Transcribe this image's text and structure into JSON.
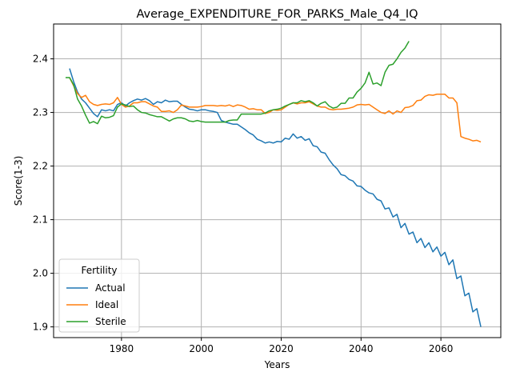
{
  "chart_data": {
    "type": "line",
    "title": "Average_EXPENDITURE_FOR_PARKS_Male_Q4_IQ",
    "xlabel": "Years",
    "ylabel": "Score(1-3)",
    "xlim": [
      1963,
      2075
    ],
    "ylim": [
      1.88,
      2.465
    ],
    "xticks": [
      1980,
      2000,
      2020,
      2040,
      2060
    ],
    "yticks": [
      1.9,
      2.0,
      2.1,
      2.2,
      2.3,
      2.4
    ],
    "ytick_labels": [
      "1.9",
      "2.0",
      "2.1",
      "2.2",
      "2.3",
      "2.4"
    ],
    "grid": true,
    "legend": {
      "title": "Fertility",
      "position": "lower-left"
    },
    "series": [
      {
        "name": "Actual",
        "color": "#1f77b4",
        "x": [
          1967,
          1968,
          1969,
          1970,
          1971,
          1972,
          1973,
          1974,
          1975,
          1976,
          1977,
          1978,
          1979,
          1980,
          1981,
          1982,
          1983,
          1984,
          1985,
          1986,
          1987,
          1988,
          1989,
          1990,
          1991,
          1992,
          1993,
          1994,
          1995,
          1996,
          1997,
          1998,
          1999,
          2000,
          2001,
          2002,
          2003,
          2004,
          2005,
          2006,
          2007,
          2008,
          2009,
          2010,
          2011,
          2012,
          2013,
          2014,
          2015,
          2016,
          2017,
          2018,
          2019,
          2020,
          2021,
          2022,
          2023,
          2024,
          2025,
          2026,
          2027,
          2028,
          2029,
          2030,
          2031,
          2032,
          2033,
          2034,
          2035,
          2036,
          2037,
          2038,
          2039,
          2040,
          2041,
          2042,
          2043,
          2044,
          2045,
          2046,
          2047,
          2048,
          2049,
          2050,
          2051,
          2052,
          2053,
          2054,
          2055,
          2056,
          2057,
          2058,
          2059,
          2060,
          2061,
          2062,
          2063,
          2064,
          2065,
          2066,
          2067,
          2068,
          2069,
          2070
        ],
        "values": [
          2.382,
          2.358,
          2.338,
          2.325,
          2.318,
          2.308,
          2.298,
          2.292,
          2.305,
          2.303,
          2.305,
          2.303,
          2.315,
          2.318,
          2.312,
          2.318,
          2.322,
          2.325,
          2.323,
          2.326,
          2.322,
          2.315,
          2.32,
          2.318,
          2.323,
          2.32,
          2.321,
          2.321,
          2.315,
          2.31,
          2.306,
          2.305,
          2.303,
          2.305,
          2.305,
          2.303,
          2.302,
          2.3,
          2.285,
          2.282,
          2.28,
          2.278,
          2.278,
          2.273,
          2.268,
          2.262,
          2.258,
          2.25,
          2.247,
          2.243,
          2.245,
          2.243,
          2.246,
          2.245,
          2.252,
          2.25,
          2.26,
          2.252,
          2.255,
          2.248,
          2.251,
          2.238,
          2.236,
          2.226,
          2.224,
          2.212,
          2.202,
          2.195,
          2.184,
          2.182,
          2.175,
          2.172,
          2.163,
          2.162,
          2.155,
          2.15,
          2.148,
          2.138,
          2.135,
          2.12,
          2.122,
          2.105,
          2.11,
          2.085,
          2.093,
          2.073,
          2.077,
          2.057,
          2.065,
          2.048,
          2.057,
          2.04,
          2.049,
          2.032,
          2.039,
          2.016,
          2.025,
          1.99,
          1.995,
          1.958,
          1.963,
          1.928,
          1.934,
          1.9
        ]
      },
      {
        "name": "Ideal",
        "color": "#ff7f0e",
        "x": [
          1967,
          1968,
          1969,
          1970,
          1971,
          1972,
          1973,
          1974,
          1975,
          1976,
          1977,
          1978,
          1979,
          1980,
          1981,
          1982,
          1983,
          1984,
          1985,
          1986,
          1987,
          1988,
          1989,
          1990,
          1991,
          1992,
          1993,
          1994,
          1995,
          1996,
          1997,
          1998,
          1999,
          2000,
          2001,
          2002,
          2003,
          2004,
          2005,
          2006,
          2007,
          2008,
          2009,
          2010,
          2011,
          2012,
          2013,
          2014,
          2015,
          2016,
          2017,
          2018,
          2019,
          2020,
          2021,
          2022,
          2023,
          2024,
          2025,
          2026,
          2027,
          2028,
          2029,
          2030,
          2031,
          2032,
          2033,
          2034,
          2035,
          2036,
          2037,
          2038,
          2039,
          2040,
          2041,
          2042,
          2043,
          2044,
          2045,
          2046,
          2047,
          2048,
          2049,
          2050,
          2051,
          2052,
          2053,
          2054,
          2055,
          2056,
          2057,
          2058,
          2059,
          2060,
          2061,
          2062,
          2063,
          2064,
          2065,
          2066,
          2067,
          2068,
          2069,
          2070
        ],
        "values": [
          2.365,
          2.35,
          2.335,
          2.328,
          2.332,
          2.32,
          2.315,
          2.313,
          2.315,
          2.316,
          2.315,
          2.318,
          2.328,
          2.315,
          2.31,
          2.312,
          2.318,
          2.318,
          2.32,
          2.32,
          2.316,
          2.312,
          2.31,
          2.302,
          2.302,
          2.303,
          2.3,
          2.305,
          2.314,
          2.312,
          2.31,
          2.31,
          2.31,
          2.311,
          2.313,
          2.313,
          2.313,
          2.312,
          2.313,
          2.312,
          2.314,
          2.311,
          2.314,
          2.313,
          2.31,
          2.306,
          2.307,
          2.305,
          2.305,
          2.298,
          2.3,
          2.305,
          2.304,
          2.305,
          2.31,
          2.315,
          2.318,
          2.316,
          2.318,
          2.318,
          2.32,
          2.316,
          2.312,
          2.31,
          2.31,
          2.306,
          2.305,
          2.306,
          2.306,
          2.307,
          2.308,
          2.31,
          2.314,
          2.315,
          2.314,
          2.315,
          2.31,
          2.305,
          2.3,
          2.298,
          2.303,
          2.297,
          2.303,
          2.3,
          2.309,
          2.31,
          2.313,
          2.322,
          2.323,
          2.33,
          2.333,
          2.332,
          2.334,
          2.334,
          2.334,
          2.327,
          2.327,
          2.318,
          2.255,
          2.252,
          2.25,
          2.247,
          2.248,
          2.245
        ]
      },
      {
        "name": "Sterile",
        "color": "#2ca02c",
        "x": [
          1966,
          1967,
          1968,
          1969,
          1970,
          1971,
          1972,
          1973,
          1974,
          1975,
          1976,
          1977,
          1978,
          1979,
          1980,
          1981,
          1982,
          1983,
          1984,
          1985,
          1986,
          1987,
          1988,
          1989,
          1990,
          1991,
          1992,
          1993,
          1994,
          1995,
          1996,
          1997,
          1998,
          1999,
          2000,
          2001,
          2002,
          2003,
          2004,
          2005,
          2006,
          2007,
          2008,
          2009,
          2010,
          2011,
          2012,
          2013,
          2014,
          2015,
          2016,
          2017,
          2018,
          2019,
          2020,
          2021,
          2022,
          2023,
          2024,
          2025,
          2026,
          2027,
          2028,
          2029,
          2030,
          2031,
          2032,
          2033,
          2034,
          2035,
          2036,
          2037,
          2038,
          2039,
          2040,
          2041,
          2042,
          2043,
          2044,
          2045,
          2046,
          2047,
          2048,
          2049,
          2050,
          2051,
          2052
        ],
        "values": [
          2.365,
          2.365,
          2.352,
          2.325,
          2.312,
          2.295,
          2.28,
          2.283,
          2.279,
          2.293,
          2.29,
          2.291,
          2.294,
          2.31,
          2.316,
          2.314,
          2.311,
          2.312,
          2.305,
          2.3,
          2.299,
          2.296,
          2.294,
          2.292,
          2.292,
          2.288,
          2.284,
          2.288,
          2.29,
          2.29,
          2.288,
          2.284,
          2.283,
          2.285,
          2.283,
          2.282,
          2.282,
          2.282,
          2.282,
          2.282,
          2.282,
          2.285,
          2.286,
          2.286,
          2.297,
          2.297,
          2.297,
          2.297,
          2.297,
          2.297,
          2.299,
          2.303,
          2.305,
          2.306,
          2.308,
          2.312,
          2.315,
          2.318,
          2.318,
          2.322,
          2.32,
          2.322,
          2.318,
          2.312,
          2.317,
          2.32,
          2.312,
          2.308,
          2.31,
          2.317,
          2.317,
          2.327,
          2.327,
          2.338,
          2.345,
          2.355,
          2.375,
          2.353,
          2.355,
          2.35,
          2.375,
          2.388,
          2.39,
          2.4,
          2.412,
          2.42,
          2.433
        ]
      }
    ]
  }
}
